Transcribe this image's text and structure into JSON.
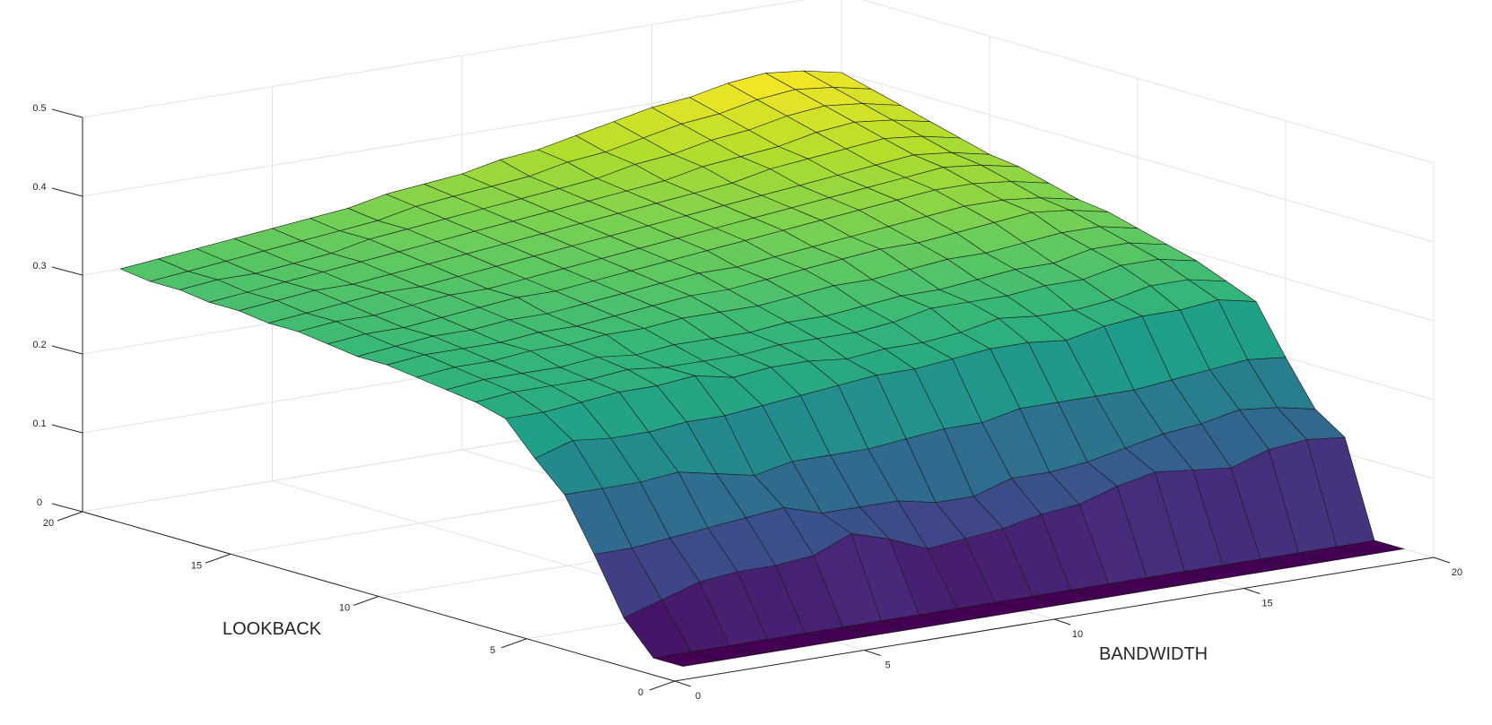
{
  "chart_data": {
    "type": "surface",
    "title": "",
    "xlabel": "BANDWIDTH",
    "ylabel": "LOOKBACK",
    "zlabel": "",
    "xlim": [
      0,
      20
    ],
    "ylim": [
      0,
      20
    ],
    "zlim": [
      0,
      0.5
    ],
    "xticks": [
      "0",
      "5",
      "10",
      "15",
      "20"
    ],
    "yticks": [
      "0",
      "5",
      "10",
      "15",
      "20"
    ],
    "zticks": [
      "0",
      "0.1",
      "0.2",
      "0.3",
      "0.4",
      "0.5"
    ],
    "grid": true,
    "colormap": "viridis",
    "x": [
      1,
      2,
      3,
      4,
      5,
      6,
      7,
      8,
      9,
      10,
      11,
      12,
      13,
      14,
      15,
      16,
      17,
      18,
      19,
      20
    ],
    "y": [
      1,
      2,
      3,
      4,
      5,
      6,
      7,
      8,
      9,
      10,
      11,
      12,
      13,
      14,
      15,
      16,
      17,
      18,
      19,
      20
    ],
    "z": [
      [
        0,
        0,
        0,
        0,
        0,
        0,
        0,
        0,
        0,
        0,
        0,
        0,
        0,
        0,
        0,
        0,
        0,
        0,
        0,
        0
      ],
      [
        0,
        0,
        0,
        0,
        0,
        0,
        0,
        0,
        0,
        0,
        0,
        0,
        0,
        0,
        0,
        0,
        0,
        0,
        0,
        0
      ],
      [
        0.04,
        0.055,
        0.07,
        0.075,
        0.075,
        0.08,
        0.1,
        0.085,
        0.065,
        0.07,
        0.075,
        0.085,
        0.09,
        0.105,
        0.115,
        0.11,
        0.105,
        0.12,
        0.125,
        0.12
      ],
      [
        0.11,
        0.11,
        0.115,
        0.12,
        0.125,
        0.13,
        0.115,
        0.115,
        0.115,
        0.105,
        0.105,
        0.12,
        0.12,
        0.125,
        0.135,
        0.145,
        0.15,
        0.16,
        0.155,
        0.145
      ],
      [
        0.175,
        0.175,
        0.175,
        0.18,
        0.17,
        0.16,
        0.17,
        0.17,
        0.17,
        0.175,
        0.18,
        0.18,
        0.19,
        0.19,
        0.19,
        0.19,
        0.195,
        0.2,
        0.205,
        0.2
      ],
      [
        0.21,
        0.225,
        0.22,
        0.22,
        0.225,
        0.225,
        0.23,
        0.235,
        0.24,
        0.245,
        0.245,
        0.25,
        0.255,
        0.255,
        0.25,
        0.26,
        0.265,
        0.265,
        0.27,
        0.26
      ],
      [
        0.25,
        0.25,
        0.255,
        0.26,
        0.26,
        0.265,
        0.255,
        0.26,
        0.26,
        0.255,
        0.26,
        0.26,
        0.265,
        0.275,
        0.27,
        0.27,
        0.275,
        0.285,
        0.285,
        0.275
      ],
      [
        0.26,
        0.265,
        0.265,
        0.265,
        0.27,
        0.265,
        0.265,
        0.265,
        0.27,
        0.27,
        0.27,
        0.275,
        0.285,
        0.285,
        0.285,
        0.29,
        0.29,
        0.3,
        0.3,
        0.29
      ],
      [
        0.265,
        0.27,
        0.27,
        0.27,
        0.275,
        0.27,
        0.275,
        0.275,
        0.275,
        0.28,
        0.28,
        0.285,
        0.29,
        0.29,
        0.295,
        0.3,
        0.3,
        0.31,
        0.31,
        0.3
      ],
      [
        0.27,
        0.275,
        0.275,
        0.28,
        0.28,
        0.285,
        0.285,
        0.29,
        0.29,
        0.29,
        0.295,
        0.3,
        0.3,
        0.305,
        0.31,
        0.31,
        0.315,
        0.32,
        0.32,
        0.31
      ],
      [
        0.275,
        0.28,
        0.28,
        0.28,
        0.285,
        0.285,
        0.29,
        0.295,
        0.3,
        0.3,
        0.305,
        0.31,
        0.315,
        0.32,
        0.32,
        0.325,
        0.33,
        0.335,
        0.33,
        0.32
      ],
      [
        0.275,
        0.28,
        0.285,
        0.285,
        0.29,
        0.29,
        0.295,
        0.3,
        0.305,
        0.31,
        0.31,
        0.315,
        0.32,
        0.325,
        0.33,
        0.335,
        0.34,
        0.34,
        0.335,
        0.325
      ],
      [
        0.28,
        0.285,
        0.285,
        0.29,
        0.295,
        0.3,
        0.3,
        0.305,
        0.31,
        0.315,
        0.32,
        0.325,
        0.33,
        0.335,
        0.34,
        0.345,
        0.35,
        0.35,
        0.345,
        0.335
      ],
      [
        0.285,
        0.29,
        0.29,
        0.295,
        0.3,
        0.3,
        0.305,
        0.31,
        0.315,
        0.32,
        0.325,
        0.33,
        0.335,
        0.34,
        0.345,
        0.35,
        0.355,
        0.36,
        0.355,
        0.345
      ],
      [
        0.285,
        0.29,
        0.295,
        0.3,
        0.3,
        0.305,
        0.31,
        0.315,
        0.32,
        0.325,
        0.33,
        0.335,
        0.34,
        0.345,
        0.35,
        0.355,
        0.36,
        0.365,
        0.36,
        0.35
      ],
      [
        0.29,
        0.295,
        0.3,
        0.3,
        0.305,
        0.31,
        0.315,
        0.32,
        0.325,
        0.33,
        0.335,
        0.34,
        0.345,
        0.35,
        0.36,
        0.365,
        0.37,
        0.375,
        0.37,
        0.36
      ],
      [
        0.29,
        0.295,
        0.3,
        0.305,
        0.31,
        0.315,
        0.32,
        0.325,
        0.33,
        0.335,
        0.34,
        0.345,
        0.35,
        0.36,
        0.365,
        0.37,
        0.38,
        0.385,
        0.38,
        0.37
      ],
      [
        0.295,
        0.3,
        0.3,
        0.305,
        0.31,
        0.32,
        0.325,
        0.33,
        0.335,
        0.34,
        0.345,
        0.35,
        0.36,
        0.365,
        0.375,
        0.38,
        0.39,
        0.395,
        0.39,
        0.38
      ],
      [
        0.295,
        0.3,
        0.305,
        0.31,
        0.315,
        0.32,
        0.325,
        0.335,
        0.34,
        0.345,
        0.35,
        0.36,
        0.365,
        0.375,
        0.385,
        0.39,
        0.4,
        0.405,
        0.4,
        0.39
      ],
      [
        0.3,
        0.305,
        0.31,
        0.315,
        0.32,
        0.325,
        0.33,
        0.34,
        0.345,
        0.35,
        0.36,
        0.365,
        0.375,
        0.385,
        0.395,
        0.4,
        0.41,
        0.415,
        0.41,
        0.4
      ]
    ]
  }
}
